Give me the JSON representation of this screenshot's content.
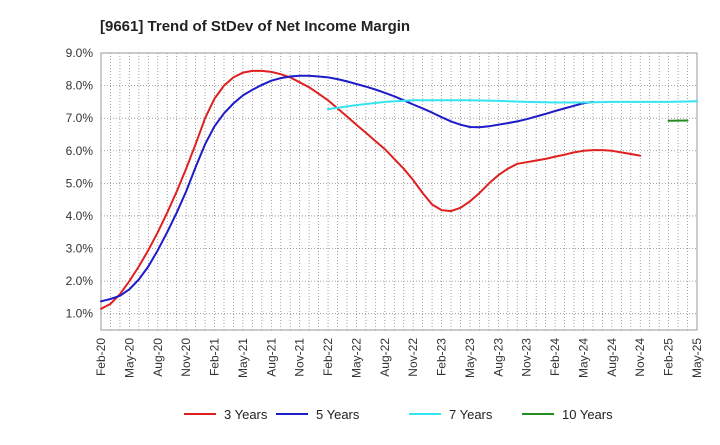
{
  "chart_data": {
    "type": "line",
    "title": "[9661]  Trend of StDev of Net Income Margin",
    "xlabel": "",
    "ylabel": "",
    "y_ticks": [
      "9.0%",
      "8.0%",
      "7.0%",
      "6.0%",
      "5.0%",
      "4.0%",
      "3.0%",
      "2.0%",
      "1.0%"
    ],
    "y_tick_values": [
      9,
      8,
      7,
      6,
      5,
      4,
      3,
      2,
      1
    ],
    "ylim": [
      0.5,
      9.0
    ],
    "x_ticks": [
      "Feb-20",
      "May-20",
      "Aug-20",
      "Nov-20",
      "Feb-21",
      "May-21",
      "Aug-21",
      "Nov-21",
      "Feb-22",
      "May-22",
      "Aug-22",
      "Nov-22",
      "Feb-23",
      "May-23",
      "Aug-23",
      "Nov-23",
      "Feb-24",
      "May-24",
      "Aug-24",
      "Nov-24",
      "Feb-25",
      "May-25"
    ],
    "x_unit": "month index from Feb-20",
    "xlim": [
      0,
      63
    ],
    "grid": true,
    "legend_position": "bottom",
    "series": [
      {
        "name": "3 Years",
        "color": "#e02020",
        "points": [
          [
            0,
            1.15
          ],
          [
            1,
            1.3
          ],
          [
            2,
            1.6
          ],
          [
            3,
            2.0
          ],
          [
            4,
            2.45
          ],
          [
            5,
            2.95
          ],
          [
            6,
            3.5
          ],
          [
            7,
            4.1
          ],
          [
            8,
            4.75
          ],
          [
            9,
            5.45
          ],
          [
            10,
            6.2
          ],
          [
            11,
            7.0
          ],
          [
            12,
            7.6
          ],
          [
            13,
            8.0
          ],
          [
            14,
            8.25
          ],
          [
            15,
            8.4
          ],
          [
            16,
            8.45
          ],
          [
            17,
            8.45
          ],
          [
            18,
            8.42
          ],
          [
            19,
            8.35
          ],
          [
            20,
            8.25
          ],
          [
            21,
            8.1
          ],
          [
            22,
            7.95
          ],
          [
            23,
            7.75
          ],
          [
            24,
            7.55
          ],
          [
            25,
            7.3
          ],
          [
            26,
            7.05
          ],
          [
            27,
            6.8
          ],
          [
            28,
            6.55
          ],
          [
            29,
            6.3
          ],
          [
            30,
            6.05
          ],
          [
            31,
            5.75
          ],
          [
            32,
            5.45
          ],
          [
            33,
            5.1
          ],
          [
            34,
            4.7
          ],
          [
            35,
            4.35
          ],
          [
            36,
            4.18
          ],
          [
            37,
            4.15
          ],
          [
            38,
            4.25
          ],
          [
            39,
            4.45
          ],
          [
            40,
            4.7
          ],
          [
            41,
            5.0
          ],
          [
            42,
            5.25
          ],
          [
            43,
            5.45
          ],
          [
            44,
            5.6
          ],
          [
            45,
            5.65
          ],
          [
            46,
            5.7
          ],
          [
            47,
            5.75
          ],
          [
            48,
            5.82
          ],
          [
            49,
            5.88
          ],
          [
            50,
            5.95
          ],
          [
            51,
            6.0
          ],
          [
            52,
            6.02
          ],
          [
            53,
            6.02
          ],
          [
            54,
            6.0
          ],
          [
            55,
            5.95
          ],
          [
            56,
            5.9
          ],
          [
            57,
            5.85
          ]
        ]
      },
      {
        "name": "5 Years",
        "color": "#1c1cc8",
        "points": [
          [
            0,
            1.38
          ],
          [
            1,
            1.45
          ],
          [
            2,
            1.55
          ],
          [
            3,
            1.75
          ],
          [
            4,
            2.05
          ],
          [
            5,
            2.45
          ],
          [
            6,
            2.95
          ],
          [
            7,
            3.5
          ],
          [
            8,
            4.1
          ],
          [
            9,
            4.75
          ],
          [
            10,
            5.5
          ],
          [
            11,
            6.2
          ],
          [
            12,
            6.75
          ],
          [
            13,
            7.15
          ],
          [
            14,
            7.45
          ],
          [
            15,
            7.7
          ],
          [
            16,
            7.87
          ],
          [
            17,
            8.02
          ],
          [
            18,
            8.15
          ],
          [
            19,
            8.23
          ],
          [
            20,
            8.28
          ],
          [
            21,
            8.3
          ],
          [
            22,
            8.3
          ],
          [
            23,
            8.28
          ],
          [
            24,
            8.25
          ],
          [
            25,
            8.2
          ],
          [
            26,
            8.13
          ],
          [
            27,
            8.05
          ],
          [
            28,
            7.97
          ],
          [
            29,
            7.88
          ],
          [
            30,
            7.78
          ],
          [
            31,
            7.67
          ],
          [
            32,
            7.55
          ],
          [
            33,
            7.42
          ],
          [
            34,
            7.3
          ],
          [
            35,
            7.17
          ],
          [
            36,
            7.03
          ],
          [
            37,
            6.9
          ],
          [
            38,
            6.8
          ],
          [
            39,
            6.73
          ],
          [
            40,
            6.72
          ],
          [
            41,
            6.75
          ],
          [
            42,
            6.8
          ],
          [
            43,
            6.85
          ],
          [
            44,
            6.9
          ],
          [
            45,
            6.97
          ],
          [
            46,
            7.05
          ],
          [
            47,
            7.13
          ],
          [
            48,
            7.22
          ],
          [
            49,
            7.3
          ],
          [
            50,
            7.38
          ],
          [
            51,
            7.46
          ],
          [
            52,
            7.5
          ]
        ]
      },
      {
        "name": "7 Years",
        "color": "#33e5ef",
        "points": [
          [
            24,
            7.28
          ],
          [
            27,
            7.4
          ],
          [
            30,
            7.5
          ],
          [
            33,
            7.55
          ],
          [
            36,
            7.55
          ],
          [
            39,
            7.55
          ],
          [
            42,
            7.53
          ],
          [
            45,
            7.5
          ],
          [
            48,
            7.48
          ],
          [
            51,
            7.48
          ],
          [
            54,
            7.5
          ],
          [
            57,
            7.5
          ],
          [
            60,
            7.5
          ],
          [
            63,
            7.52
          ]
        ]
      },
      {
        "name": "10 Years",
        "color": "#228b22",
        "points": [
          [
            60,
            6.92
          ],
          [
            62,
            6.93
          ]
        ]
      }
    ]
  }
}
